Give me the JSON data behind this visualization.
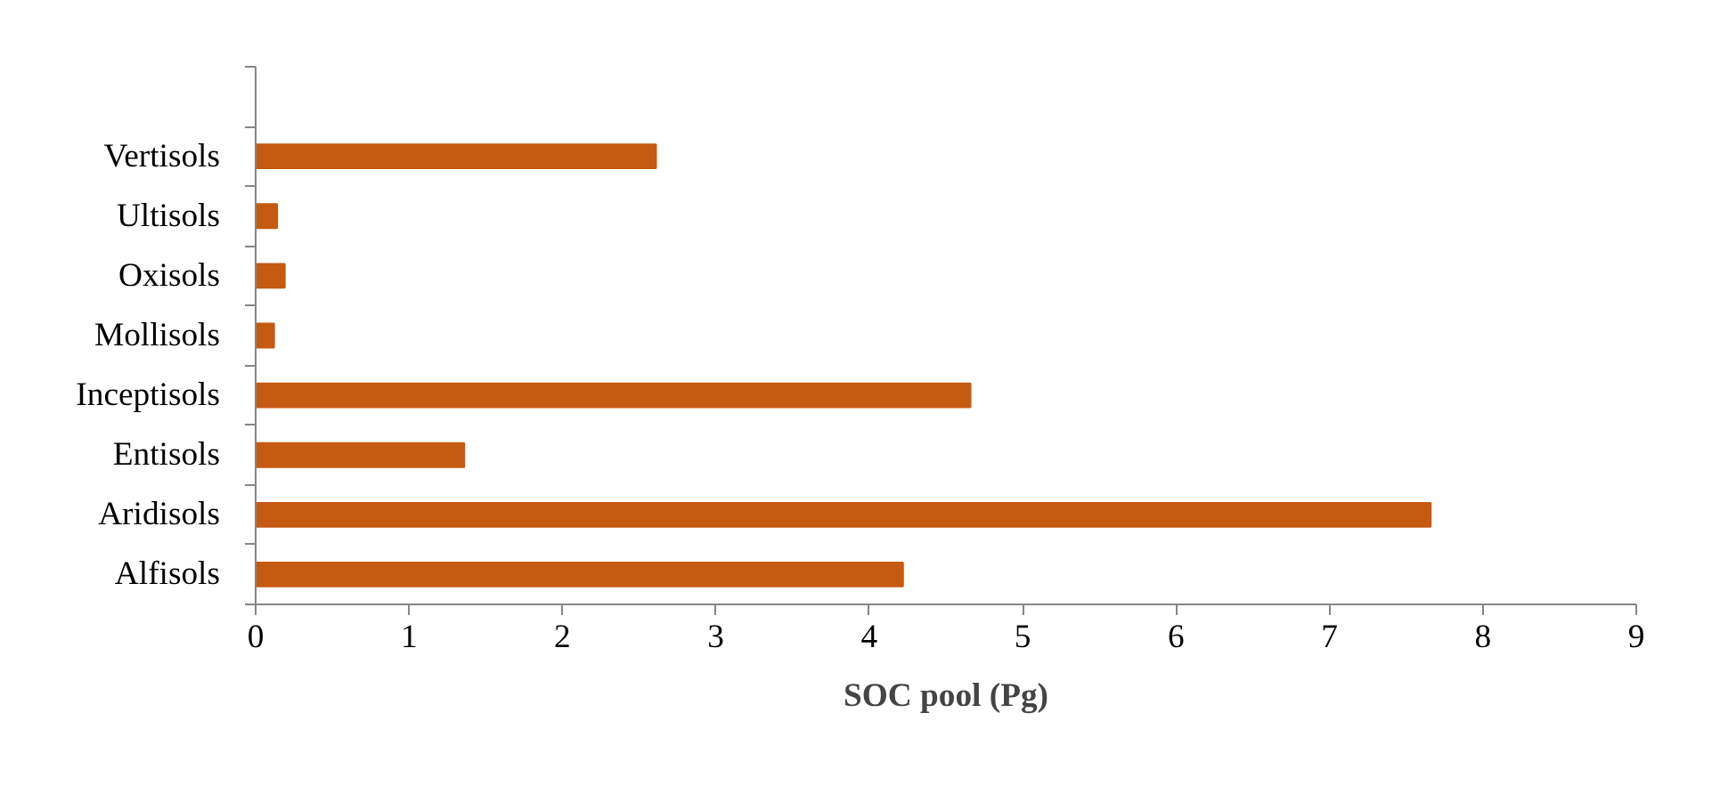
{
  "chart_data": {
    "type": "bar",
    "orientation": "horizontal",
    "xlabel": "SOC pool (Pg)",
    "categories": [
      null,
      "Vertisols",
      "Ultisols",
      "Oxisols",
      "Mollisols",
      "Inceptisols",
      "Entisols",
      "Aridisols",
      "Alfisols"
    ],
    "values": [
      null,
      2.61,
      0.14,
      0.19,
      0.12,
      4.66,
      1.36,
      7.66,
      4.22
    ],
    "color": "#c55a11",
    "xlim": [
      0,
      9
    ],
    "xticks": [
      0,
      1,
      2,
      3,
      4,
      5,
      6,
      7,
      8,
      9
    ],
    "grid": false
  }
}
